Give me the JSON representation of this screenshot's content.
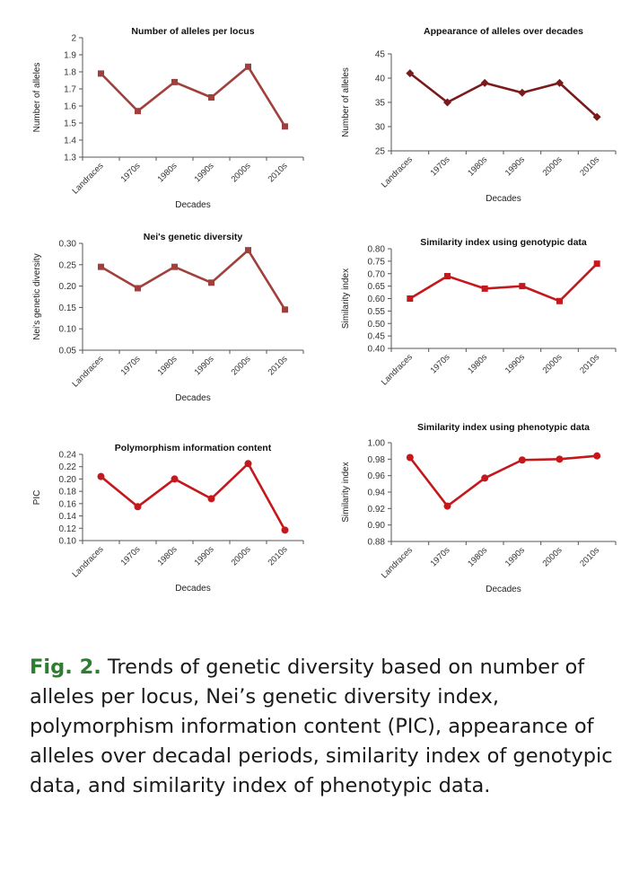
{
  "chart_data": [
    {
      "type": "line",
      "title": "Number of alleles per locus",
      "xlabel": "Decades",
      "ylabel": "Number of alleles",
      "categories": [
        "Landraces",
        "1970s",
        "1980s",
        "1990s",
        "2000s",
        "2010s"
      ],
      "values": [
        1.79,
        1.57,
        1.74,
        1.65,
        1.83,
        1.48
      ],
      "ylim": [
        1.3,
        2
      ],
      "yticks": [
        "1.3",
        "1.4",
        "1.5",
        "1.6",
        "1.7",
        "1.8",
        "1.9",
        "2"
      ],
      "color": "#a0403c",
      "marker": "square"
    },
    {
      "type": "line",
      "title": "Appearance of alleles over decades",
      "xlabel": "Decades",
      "ylabel": "Number of alleles",
      "categories": [
        "Landraces",
        "1970s",
        "1980s",
        "1990s",
        "2000s",
        "2010s"
      ],
      "values": [
        41,
        35,
        39,
        37,
        39,
        32
      ],
      "ylim": [
        25,
        45
      ],
      "yticks": [
        "25",
        "30",
        "35",
        "40",
        "45"
      ],
      "color": "#7b1a1a",
      "marker": "diamond"
    },
    {
      "type": "line",
      "title": "Nei's genetic diversity",
      "xlabel": "Decades",
      "ylabel": "Nei's genetic diversity",
      "categories": [
        "Landraces",
        "1970s",
        "1980s",
        "1990s",
        "2000s",
        "2010s"
      ],
      "values": [
        0.245,
        0.195,
        0.245,
        0.208,
        0.284,
        0.145
      ],
      "ylim": [
        0.05,
        0.3
      ],
      "yticks": [
        "0.05",
        "0.10",
        "0.15",
        "0.20",
        "0.25",
        "0.30"
      ],
      "color": "#a0403c",
      "marker": "square"
    },
    {
      "type": "line",
      "title": "Similarity index using genotypic data",
      "xlabel": "",
      "ylabel": "Similarity index",
      "categories": [
        "Landraces",
        "1970s",
        "1980s",
        "1990s",
        "2000s",
        "2010s"
      ],
      "values": [
        0.6,
        0.69,
        0.64,
        0.65,
        0.59,
        0.74
      ],
      "ylim": [
        0.4,
        0.8
      ],
      "yticks": [
        "0.40",
        "0.45",
        "0.50",
        "0.55",
        "0.60",
        "0.65",
        "0.70",
        "0.75",
        "0.80"
      ],
      "color": "#c4181c",
      "marker": "square"
    },
    {
      "type": "line",
      "title": "Polymorphism information content",
      "xlabel": "Decades",
      "ylabel": "PIC",
      "categories": [
        "Landraces",
        "1970s",
        "1980s",
        "1990s",
        "2000s",
        "2010s"
      ],
      "values": [
        0.204,
        0.155,
        0.2,
        0.168,
        0.225,
        0.117
      ],
      "ylim": [
        0.1,
        0.24
      ],
      "yticks": [
        "0.10",
        "0.12",
        "0.14",
        "0.16",
        "0.18",
        "0.20",
        "0.22",
        "0.24"
      ],
      "color": "#c4181c",
      "marker": "circle"
    },
    {
      "type": "line",
      "title": "Similarity index using phenotypic data",
      "xlabel": "Decades",
      "ylabel": "Similarity index",
      "categories": [
        "Landraces",
        "1970s",
        "1980s",
        "1990s",
        "2000s",
        "2010s"
      ],
      "values": [
        0.982,
        0.923,
        0.957,
        0.979,
        0.98,
        0.984
      ],
      "ylim": [
        0.88,
        1.0
      ],
      "yticks": [
        "0.88",
        "0.90",
        "0.92",
        "0.94",
        "0.96",
        "0.98",
        "1.00"
      ],
      "color": "#c4181c",
      "marker": "circle"
    }
  ],
  "caption": {
    "fig_label": "Fig. 2.",
    "text": " Trends of genetic diversity based on number of alleles per locus, Nei’s genetic diversity index, polymorphism information content (PIC), appearance of alleles over decadal periods, similarity index of genotypic data, and similarity index of phenotypic data."
  }
}
